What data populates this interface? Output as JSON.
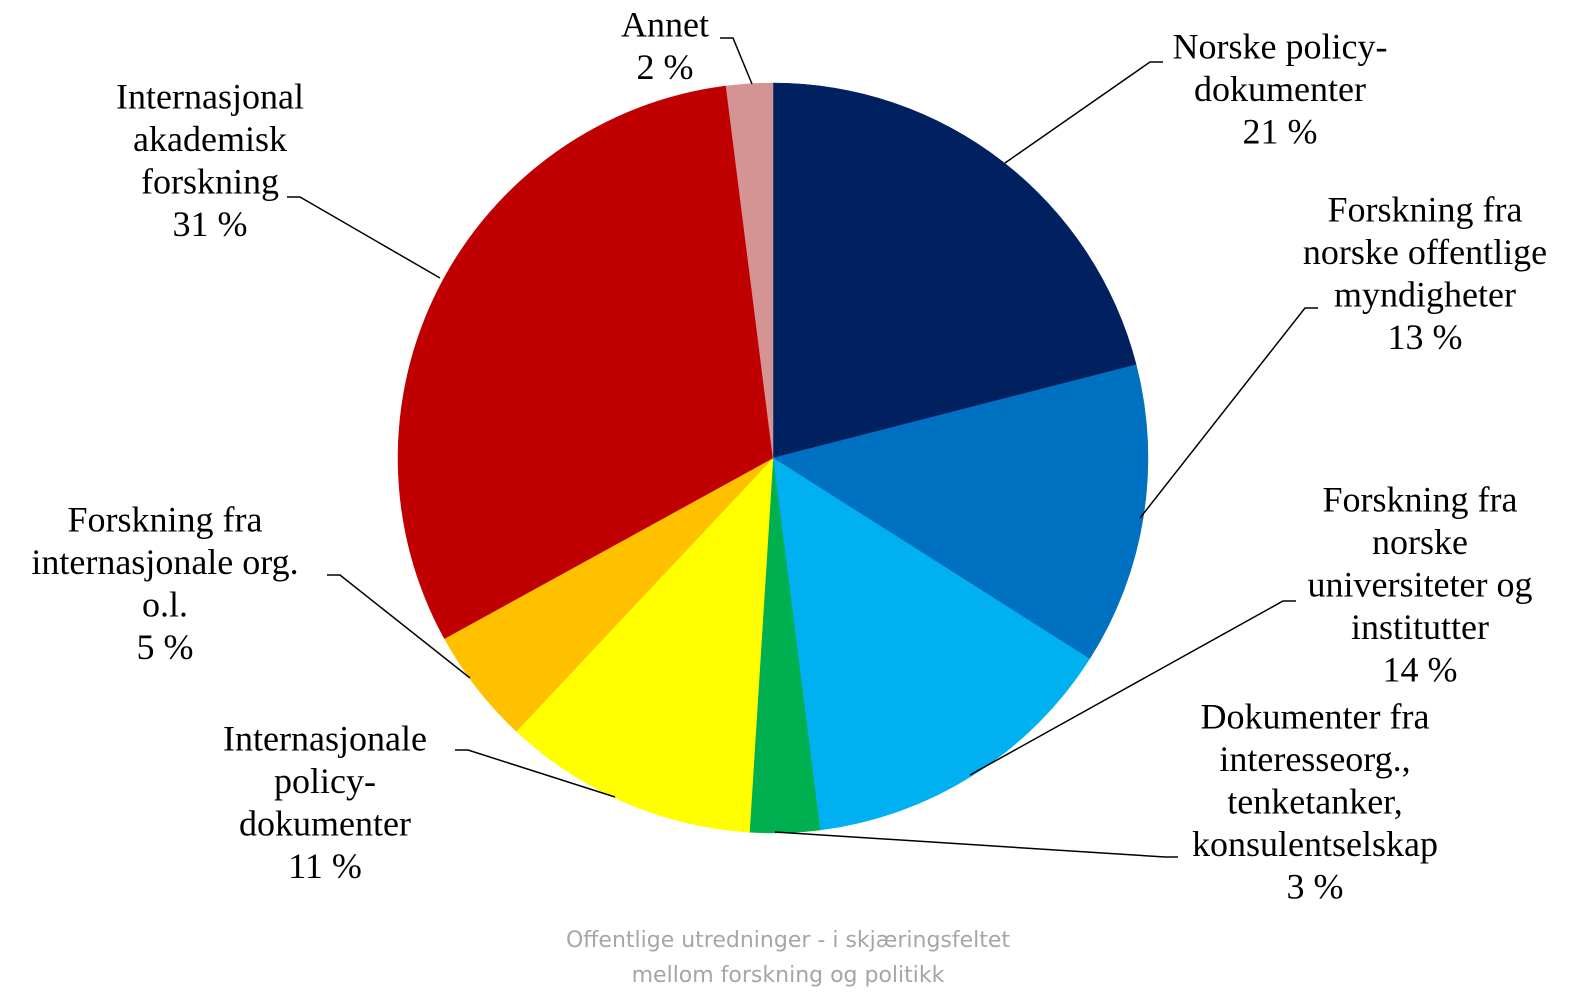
{
  "chart_data": {
    "type": "pie",
    "categories": [
      [
        "Norske policy-",
        "dokumenter"
      ],
      [
        "Forskning fra",
        "norske offentlige",
        "myndigheter"
      ],
      [
        "Forskning fra",
        "norske",
        "universiteter og",
        "institutter"
      ],
      [
        "Dokumenter fra",
        "interesseorg.,",
        "tenketanker,",
        "konsulentselskap"
      ],
      [
        "Internasjonale",
        "policy-",
        "dokumenter"
      ],
      [
        "Forskning fra",
        "internasjonale org.",
        "o.l."
      ],
      [
        "Internasjonal",
        "akademisk",
        "forskning"
      ],
      [
        "Annet"
      ]
    ],
    "values": [
      21,
      13,
      14,
      3,
      11,
      5,
      31,
      2
    ],
    "value_labels": [
      "21 %",
      "13 %",
      "14 %",
      "3 %",
      "11 %",
      "5 %",
      "31 %",
      "2 %"
    ],
    "colors": [
      "#002060",
      "#0070c0",
      "#00b0f0",
      "#00b050",
      "#ffff00",
      "#ffc000",
      "#c00000",
      "#d49494"
    ],
    "footer": [
      "Offentlige utredninger - i skjæringsfeltet",
      "mellom forskning og politikk"
    ]
  }
}
